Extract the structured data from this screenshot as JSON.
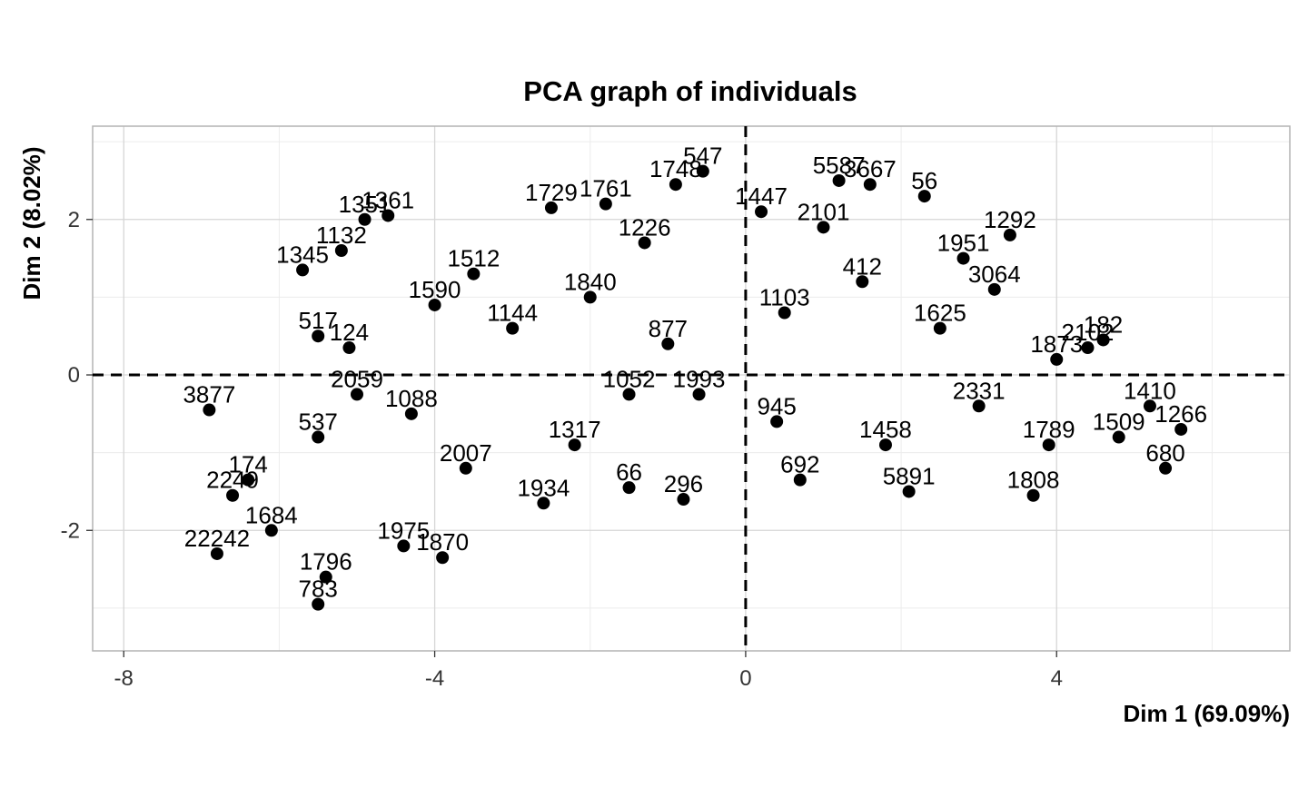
{
  "chart_data": {
    "type": "scatter",
    "title": "PCA graph of individuals",
    "xlabel": "Dim 1 (69.09%)",
    "ylabel": "Dim 2 (8.02%)",
    "xlim": [
      -8.4,
      7.0
    ],
    "ylim": [
      -3.55,
      3.2
    ],
    "xticks": [
      -8,
      -4,
      0,
      4
    ],
    "yticks": [
      -2,
      0,
      2
    ],
    "grid": true,
    "reference_lines": {
      "x": 0,
      "y": 0,
      "style": "dashed"
    },
    "points": [
      {
        "x": -0.55,
        "y": 2.62,
        "label": "547"
      },
      {
        "x": -0.9,
        "y": 2.45,
        "label": "1748"
      },
      {
        "x": 1.2,
        "y": 2.5,
        "label": "5587"
      },
      {
        "x": 1.6,
        "y": 2.45,
        "label": "3667"
      },
      {
        "x": 2.3,
        "y": 2.3,
        "label": "56"
      },
      {
        "x": 3.4,
        "y": 1.8,
        "label": "1292"
      },
      {
        "x": 3.2,
        "y": 1.1,
        "label": "3064"
      },
      {
        "x": 4.4,
        "y": 0.35,
        "label": "2102"
      },
      {
        "x": 4.6,
        "y": 0.45,
        "label": "182"
      },
      {
        "x": 5.2,
        "y": -0.4,
        "label": "1410"
      },
      {
        "x": 5.6,
        "y": -0.7,
        "label": "1266"
      },
      {
        "x": 5.4,
        "y": -1.2,
        "label": "680"
      },
      {
        "x": 3.7,
        "y": -1.55,
        "label": "1808"
      },
      {
        "x": 2.1,
        "y": -1.5,
        "label": "5891"
      },
      {
        "x": 0.7,
        "y": -1.35,
        "label": "692"
      },
      {
        "x": -0.8,
        "y": -1.6,
        "label": "296"
      },
      {
        "x": -1.5,
        "y": -1.45,
        "label": "66"
      },
      {
        "x": -2.6,
        "y": -1.65,
        "label": "1934"
      },
      {
        "x": -3.9,
        "y": -2.35,
        "label": "1870"
      },
      {
        "x": -4.4,
        "y": -2.2,
        "label": "1975"
      },
      {
        "x": -5.4,
        "y": -2.6,
        "label": "1796"
      },
      {
        "x": -5.5,
        "y": -2.95,
        "label": "783"
      },
      {
        "x": -6.8,
        "y": -2.3,
        "label": "22242"
      },
      {
        "x": -6.1,
        "y": -2.0,
        "label": "1684"
      },
      {
        "x": -6.6,
        "y": -1.55,
        "label": "2249"
      },
      {
        "x": -6.4,
        "y": -1.35,
        "label": "174"
      },
      {
        "x": -5.5,
        "y": -0.8,
        "label": "537"
      },
      {
        "x": -6.9,
        "y": -0.45,
        "label": "3877"
      },
      {
        "x": -5.0,
        "y": -0.25,
        "label": "2059"
      },
      {
        "x": -5.5,
        "y": 0.5,
        "label": "517"
      },
      {
        "x": -5.1,
        "y": 0.35,
        "label": "124"
      },
      {
        "x": -5.7,
        "y": 1.35,
        "label": "1345"
      },
      {
        "x": -5.2,
        "y": 1.6,
        "label": "1132"
      },
      {
        "x": -4.9,
        "y": 2.0,
        "label": "1351"
      },
      {
        "x": -4.6,
        "y": 2.05,
        "label": "1361"
      },
      {
        "x": -2.5,
        "y": 2.15,
        "label": "1729"
      },
      {
        "x": -1.8,
        "y": 2.2,
        "label": "1761"
      },
      {
        "x": -1.5,
        "y": -0.25,
        "label": "1052"
      },
      {
        "x": -0.6,
        "y": -0.25,
        "label": "1993"
      },
      {
        "x": 1.0,
        "y": 1.9,
        "label": "2101"
      },
      {
        "x": -3.5,
        "y": 1.3,
        "label": "1512"
      },
      {
        "x": -3.0,
        "y": 0.6,
        "label": "1144"
      },
      {
        "x": -2.0,
        "y": 1.0,
        "label": "1840"
      },
      {
        "x": -1.0,
        "y": 0.4,
        "label": "877"
      },
      {
        "x": 0.5,
        "y": 0.8,
        "label": "1103"
      },
      {
        "x": 1.5,
        "y": 1.2,
        "label": "412"
      },
      {
        "x": 2.5,
        "y": 0.6,
        "label": "1625"
      },
      {
        "x": 3.0,
        "y": -0.4,
        "label": "2331"
      },
      {
        "x": 1.8,
        "y": -0.9,
        "label": "1458"
      },
      {
        "x": 3.9,
        "y": -0.9,
        "label": "1789"
      },
      {
        "x": 0.4,
        "y": -0.6,
        "label": "945"
      },
      {
        "x": -2.2,
        "y": -0.9,
        "label": "1317"
      },
      {
        "x": -3.6,
        "y": -1.2,
        "label": "2007"
      },
      {
        "x": -4.3,
        "y": -0.5,
        "label": "1088"
      },
      {
        "x": -4.0,
        "y": 0.9,
        "label": "1590"
      },
      {
        "x": -1.3,
        "y": 1.7,
        "label": "1226"
      },
      {
        "x": 0.2,
        "y": 2.1,
        "label": "1447"
      },
      {
        "x": 2.8,
        "y": 1.5,
        "label": "1951"
      },
      {
        "x": 4.0,
        "y": 0.2,
        "label": "1873"
      },
      {
        "x": 4.8,
        "y": -0.8,
        "label": "1509"
      }
    ]
  }
}
